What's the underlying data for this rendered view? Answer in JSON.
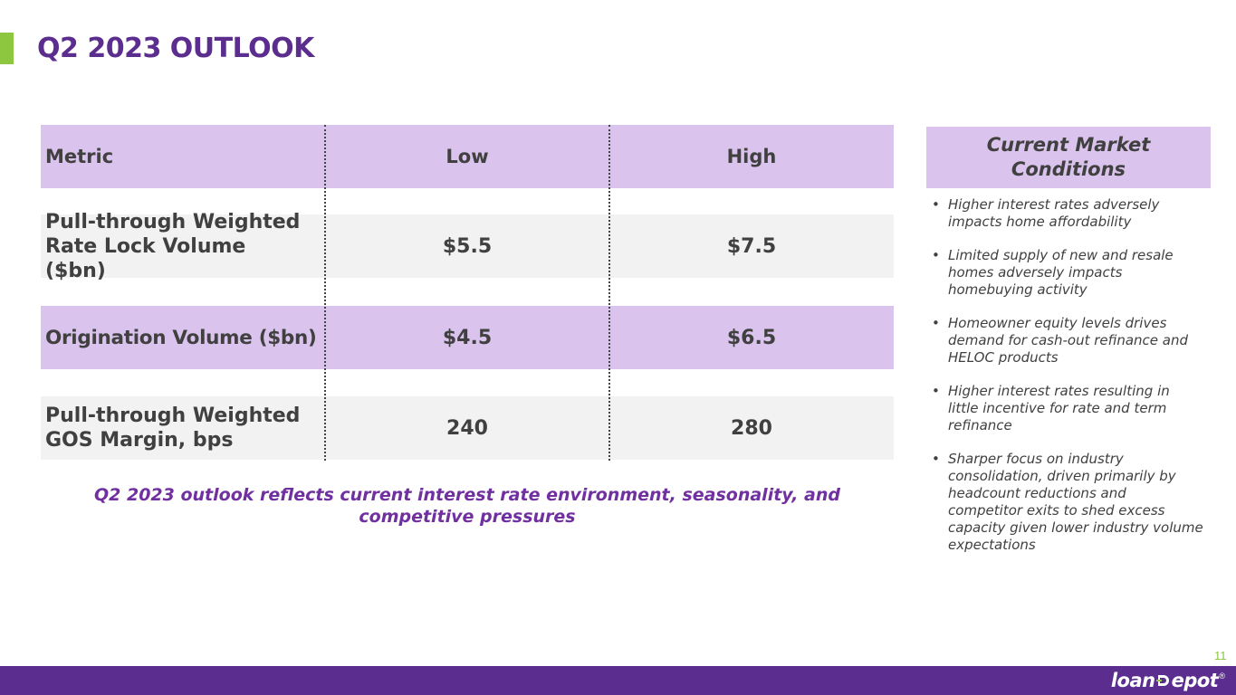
{
  "slide": {
    "title": "Q2 2023 OUTLOOK",
    "page_number": "11"
  },
  "table": {
    "headers": [
      "Metric",
      "Low",
      "High"
    ],
    "rows": [
      {
        "metric": "Pull-through Weighted Rate Lock Volume ($bn)",
        "low": "$5.5",
        "high": "$7.5"
      },
      {
        "metric": "Origination Volume ($bn)",
        "low": "$4.5",
        "high": "$6.5"
      },
      {
        "metric": "Pull-through Weighted GOS Margin, bps",
        "low": "240",
        "high": "280"
      }
    ]
  },
  "footnote": "Q2 2023 outlook reflects current interest rate environment, seasonality, and competitive pressures",
  "market_conditions": {
    "title": "Current Market Conditions",
    "bullets": [
      "Higher interest rates adversely impacts home affordability",
      "Limited supply of new and resale homes adversely impacts homebuying activity",
      "Homeowner equity levels drives demand for cash-out refinance and HELOC products",
      "Higher interest rates resulting in little incentive for rate and term refinance",
      "Sharper focus on industry consolidation, driven primarily by headcount reductions and competitor exits to shed excess capacity given lower industry volume expectations"
    ]
  },
  "footer": {
    "logo_text_left": "loan",
    "logo_text_right": "epot",
    "logo_mark": "D",
    "logo_superscript": "®"
  },
  "colors": {
    "brand_purple": "#5b2d8e",
    "accent_green": "#8dc63f",
    "header_lavender": "#dac3ec",
    "row_gray": "#f2f2f2",
    "footnote_purple": "#7030a0"
  }
}
